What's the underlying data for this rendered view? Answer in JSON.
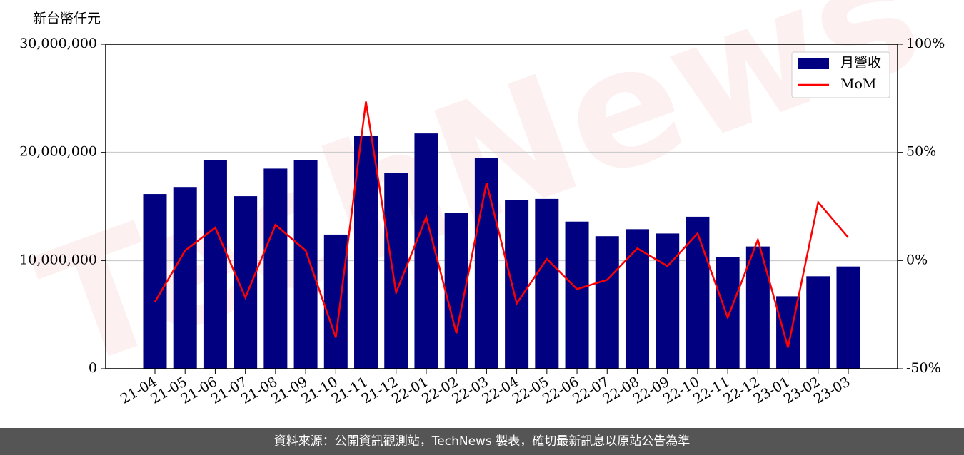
{
  "chart_data": {
    "type": "bar-line",
    "y_label": "新台幣仟元",
    "watermark": "TechNews",
    "categories": [
      "21-04",
      "21-05",
      "21-06",
      "21-07",
      "21-08",
      "21-09",
      "21-10",
      "21-11",
      "21-12",
      "22-01",
      "22-02",
      "22-03",
      "22-04",
      "22-05",
      "22-06",
      "22-07",
      "22-08",
      "22-09",
      "22-10",
      "22-11",
      "22-12",
      "23-01",
      "23-02",
      "23-03"
    ],
    "series": [
      {
        "name": "月營收",
        "type": "bar",
        "color": "#000080",
        "values": [
          16150000,
          16800000,
          19300000,
          15950000,
          18500000,
          19300000,
          12400000,
          21500000,
          18100000,
          21750000,
          14400000,
          19500000,
          15600000,
          15700000,
          13600000,
          12250000,
          12900000,
          12500000,
          14050000,
          10350000,
          11300000,
          6700000,
          8550000,
          9450000
        ]
      },
      {
        "name": "MoM",
        "type": "line",
        "axis": "y2",
        "color": "#ff0000",
        "values": [
          -19.1,
          4.6,
          15.2,
          -17.1,
          16.5,
          4.6,
          -35.6,
          73.5,
          -14.8,
          20.1,
          -33.6,
          35.9,
          -19.8,
          0.7,
          -13.2,
          -8.9,
          5.6,
          -2.6,
          12.5,
          -26.4,
          9.6,
          -40.2,
          27.0,
          10.6
        ]
      }
    ],
    "ylim": [
      0,
      30000000
    ],
    "yticks": [
      {
        "value": 0,
        "label": "0"
      },
      {
        "value": 10000000,
        "label": "10,000,000"
      },
      {
        "value": 20000000,
        "label": "20,000,000"
      },
      {
        "value": 30000000,
        "label": "30,000,000"
      }
    ],
    "y2lim": [
      -50,
      100
    ],
    "y2ticks": [
      {
        "value": -50,
        "label": "-50%"
      },
      {
        "value": 0,
        "label": "0%"
      },
      {
        "value": 50,
        "label": "50%"
      },
      {
        "value": 100,
        "label": "100%"
      }
    ],
    "grid": true,
    "legend": "upper right",
    "footer": "資料來源：公開資訊觀測站，TechNews 製表，確切最新訊息以原站公告為準"
  }
}
